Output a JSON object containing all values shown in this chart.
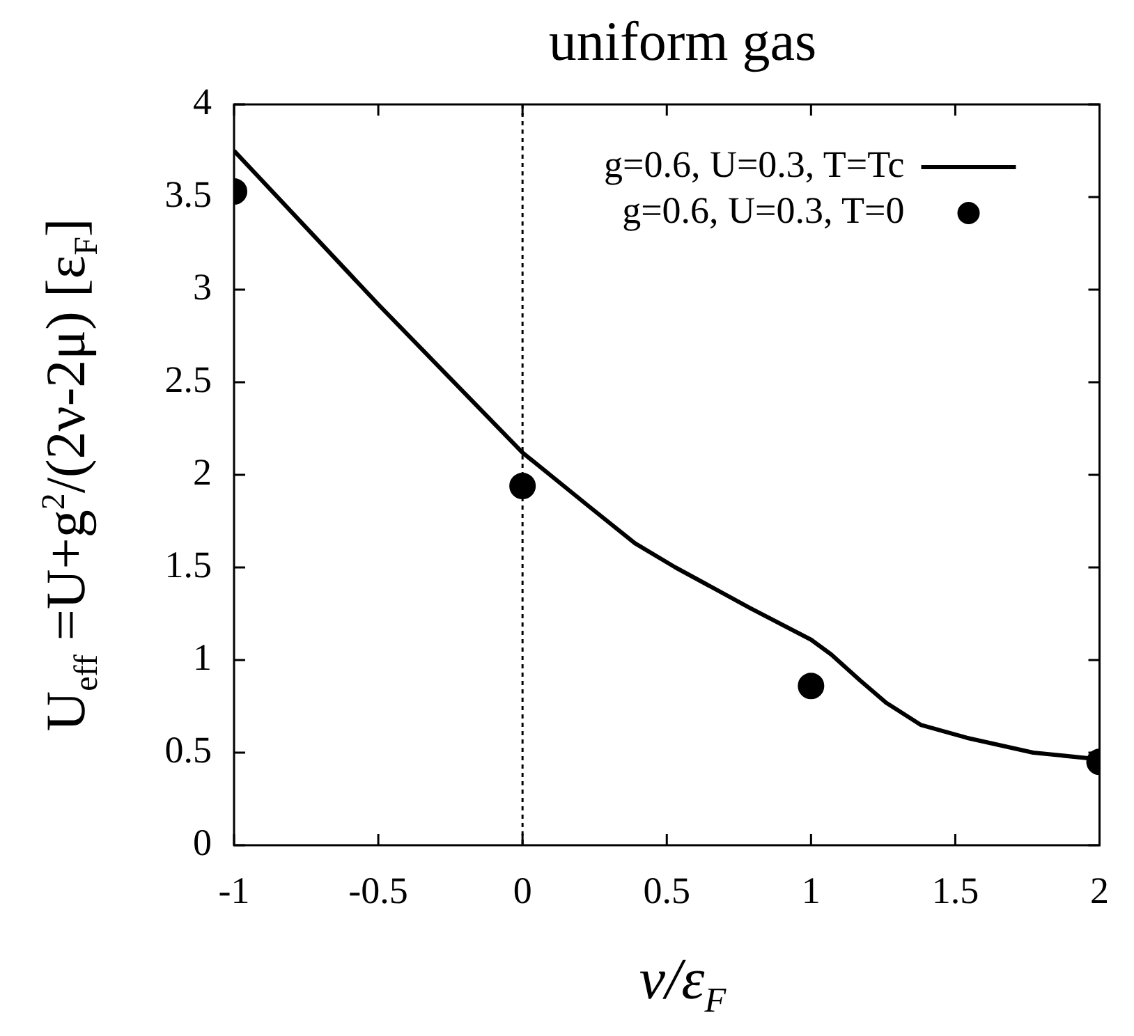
{
  "chart_data": {
    "type": "line",
    "title": "uniform gas",
    "xlabel": "ν/ε$_{F}$",
    "ylabel": "U$_{eff}$ =U+g$^{2}$/(2ν-2μ)  [ε$_{F}$]",
    "xlim": [
      -1,
      2
    ],
    "xticks": [
      -1,
      -0.5,
      0,
      0.5,
      1,
      1.5,
      2
    ],
    "ylim": [
      0,
      4
    ],
    "yticks": [
      0,
      0.5,
      1,
      1.5,
      2,
      2.5,
      3,
      3.5,
      4
    ],
    "grid": false,
    "legend": "top right",
    "ref_lines": [
      {
        "axis": "x",
        "value": 0,
        "line_style": "dotted",
        "color": "#000000"
      }
    ],
    "series": [
      {
        "name": "g=0.6, U=0.3, T=Tc",
        "color": "#000000",
        "marker": "none",
        "line_style": "solid",
        "x": [
          -1,
          -0.5,
          0,
          0.23,
          0.39,
          0.53,
          0.79,
          1,
          1.07,
          1.17,
          1.26,
          1.38,
          1.54,
          1.77,
          1.96,
          2
        ],
        "values": [
          3.75,
          2.92,
          2.12,
          1.83,
          1.63,
          1.5,
          1.28,
          1.11,
          1.03,
          0.89,
          0.77,
          0.65,
          0.58,
          0.5,
          0.47,
          0.46
        ]
      },
      {
        "name": "g=0.6, U=0.3, T=0",
        "type": "scatter",
        "color": "#000000",
        "marker": "circle",
        "x": [
          -1,
          0,
          1,
          2
        ],
        "values": [
          3.53,
          1.94,
          0.86,
          0.45
        ]
      }
    ]
  }
}
